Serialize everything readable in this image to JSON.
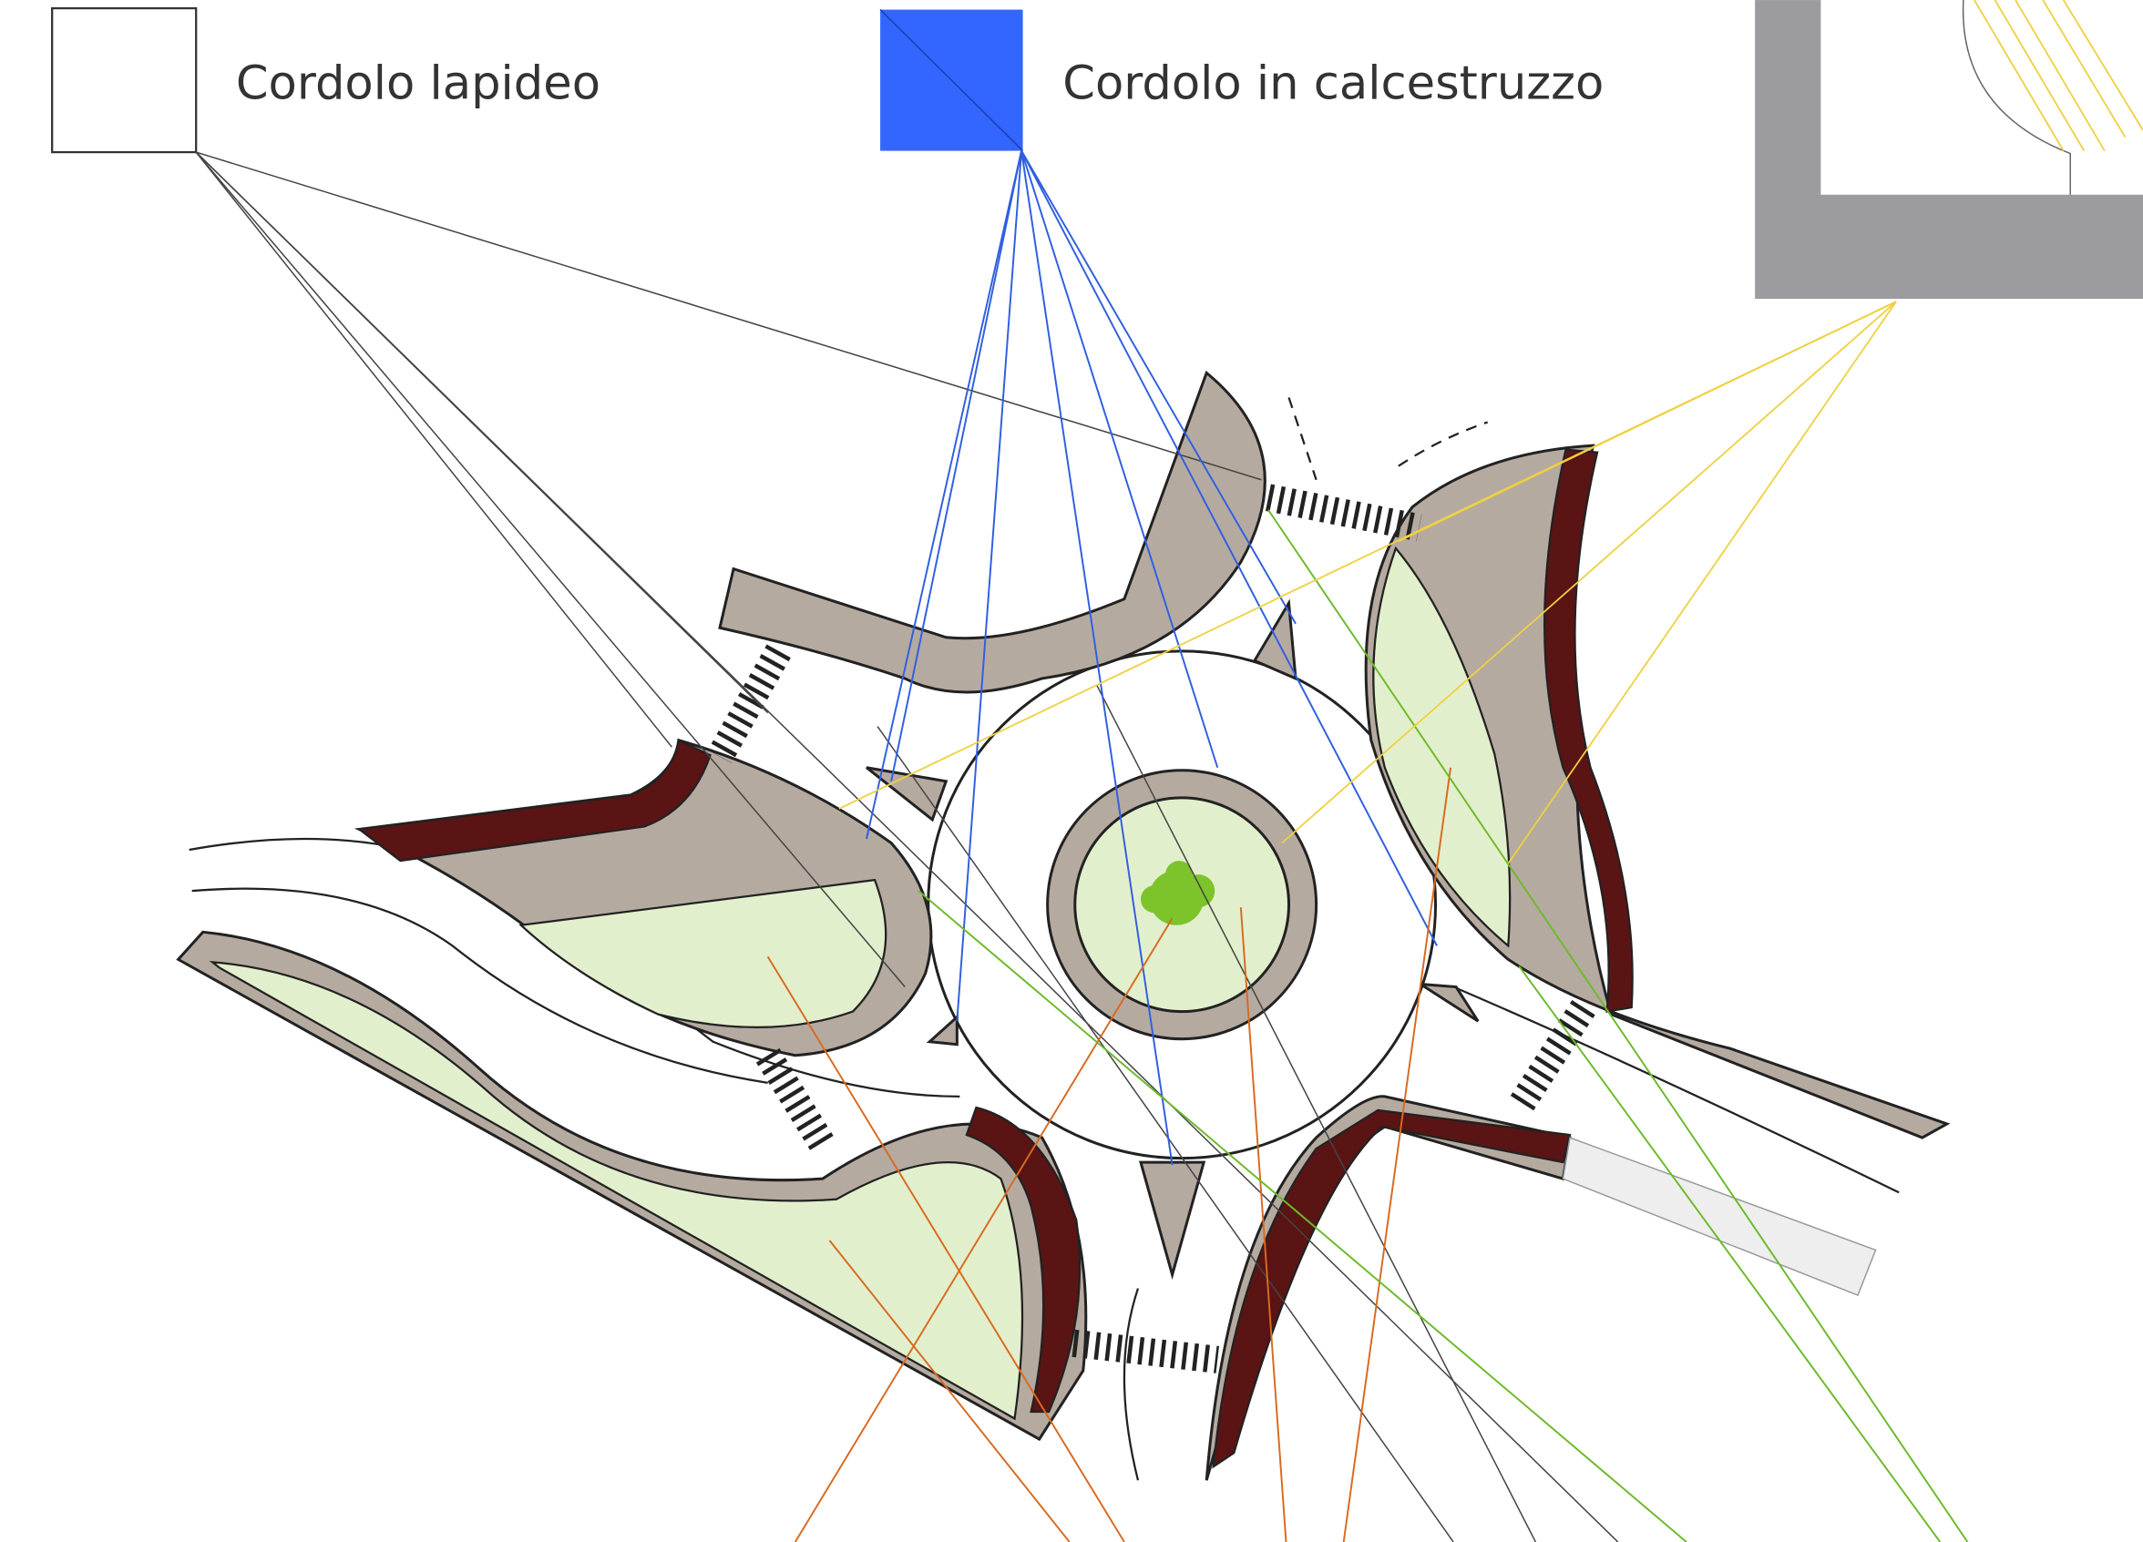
{
  "legend": {
    "items": [
      {
        "label": "Cordolo lapideo"
      },
      {
        "label": "Cordolo in calcestruzzo"
      }
    ]
  }
}
